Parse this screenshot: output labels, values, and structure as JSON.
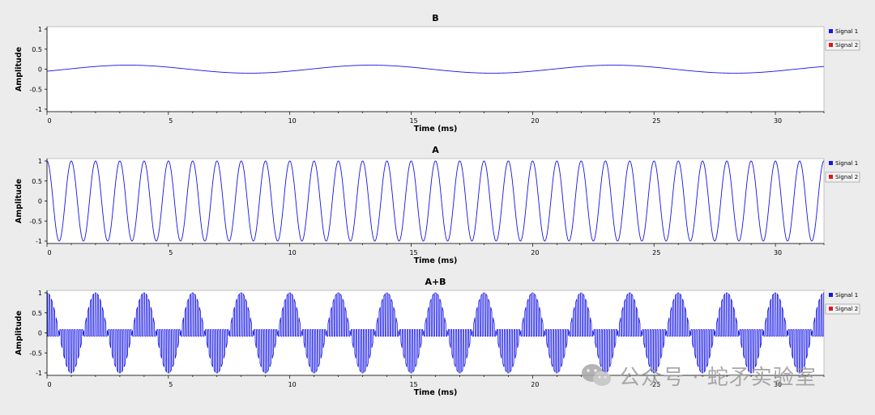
{
  "colors": {
    "signal1": "#1414e6",
    "signal2": "#e61414",
    "plot_bg": "#ffffff",
    "window_bg": "#ececec"
  },
  "watermark": {
    "text": "公众号 · 蛇矛实验室"
  },
  "chart_data": [
    {
      "type": "line",
      "title": "B",
      "xlabel": "Time (ms)",
      "ylabel": "Amplitude",
      "xlim": [
        0,
        32
      ],
      "ylim": [
        -1,
        1
      ],
      "xticks": [
        0,
        5,
        10,
        15,
        20,
        25,
        30
      ],
      "yticks": [
        1,
        0.5,
        0,
        -0.5,
        -1
      ],
      "grid": false,
      "legend_position": "right",
      "legend": [
        "Signal 1",
        "Signal 2"
      ],
      "series": [
        {
          "name": "Signal 1",
          "function": "sine",
          "amplitude": 0.1,
          "frequency_khz": 0.1,
          "phase_deg": -30
        }
      ]
    },
    {
      "type": "line",
      "title": "A",
      "xlabel": "Time (ms)",
      "ylabel": "Amplitude",
      "xlim": [
        0,
        32
      ],
      "ylim": [
        -1,
        1
      ],
      "xticks": [
        0,
        5,
        10,
        15,
        20,
        25,
        30
      ],
      "yticks": [
        1,
        0.5,
        0,
        -0.5,
        -1
      ],
      "grid": false,
      "legend_position": "right",
      "legend": [
        "Signal 1",
        "Signal 2"
      ],
      "series": [
        {
          "name": "Signal 1",
          "function": "cosine",
          "amplitude": 1,
          "frequency_khz": 1,
          "phase_deg": 0
        }
      ]
    },
    {
      "type": "line",
      "title": "A+B",
      "xlabel": "Time (ms)",
      "ylabel": "Amplitude",
      "xlim": [
        0,
        32
      ],
      "ylim": [
        -1,
        1
      ],
      "xticks": [
        0,
        5,
        10,
        15,
        20,
        25,
        30
      ],
      "yticks": [
        1,
        0.5,
        0,
        -0.5,
        -1
      ],
      "grid": false,
      "legend_position": "right",
      "legend": [
        "Signal 1",
        "Signal 2"
      ],
      "series": [
        {
          "name": "Signal 1",
          "function": "am_envelope",
          "envelope_frequency_khz": 0.5,
          "carrier_frequency_khz": 10,
          "envelope_floor": 0.08
        }
      ]
    }
  ]
}
